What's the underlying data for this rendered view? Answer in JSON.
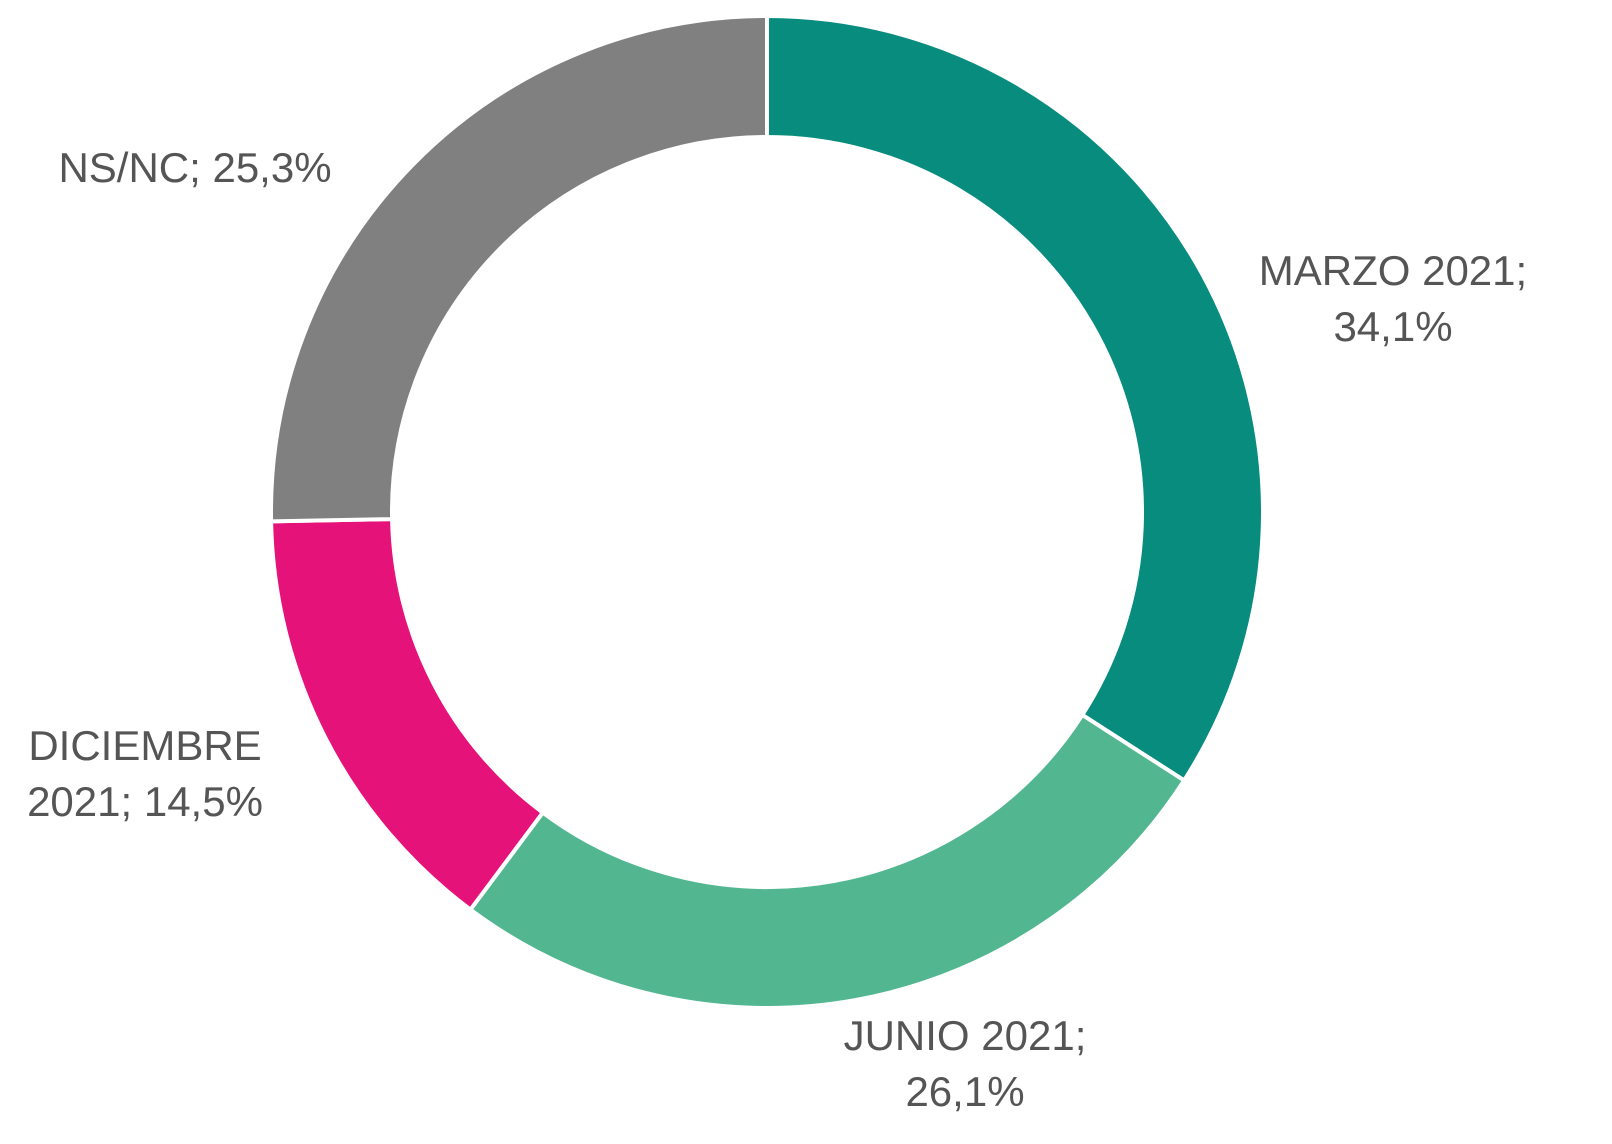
{
  "chart_data": {
    "type": "donut",
    "categories": [
      "MARZO 2021",
      "JUNIO 2021",
      "DICIEMBRE 2021",
      "NS/NC"
    ],
    "values": [
      34.1,
      26.1,
      14.5,
      25.3
    ],
    "value_labels": [
      "34,1%",
      "26,1%",
      "14,5%",
      "25,3%"
    ],
    "label_separator": "; ",
    "colors": [
      "#078c7d",
      "#52b791",
      "#e5127a",
      "#808080"
    ]
  }
}
